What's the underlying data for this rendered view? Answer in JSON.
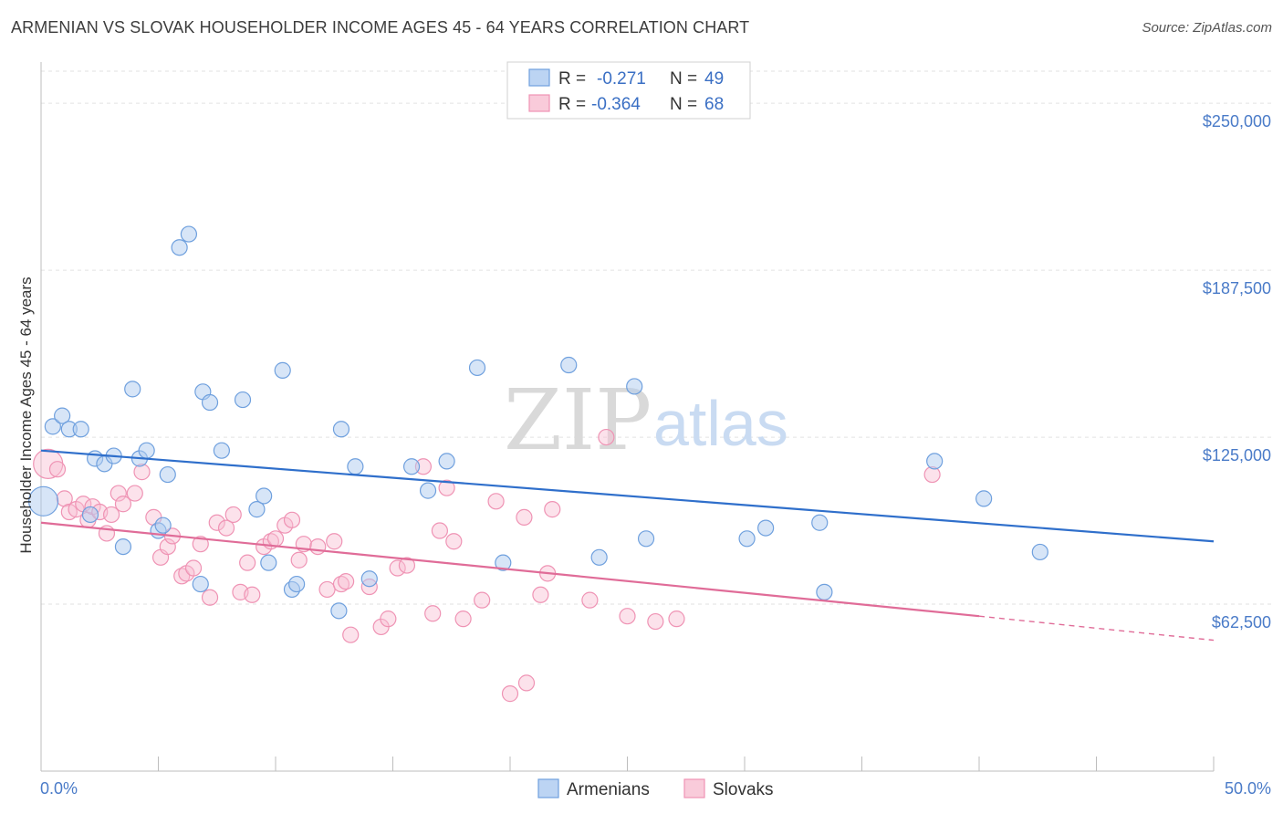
{
  "title": "ARMENIAN VS SLOVAK HOUSEHOLDER INCOME AGES 45 - 64 YEARS CORRELATION CHART",
  "source": "Source: ZipAtlas.com",
  "watermark": {
    "zip": "ZIP",
    "atlas": "atlas"
  },
  "legend": {
    "rows": [
      {
        "r_label": "R =",
        "r_value": "-0.271",
        "n_label": "N =",
        "n_value": "49"
      },
      {
        "r_label": "R =",
        "r_value": "-0.364",
        "n_label": "N =",
        "n_value": "68"
      }
    ]
  },
  "chart_data": {
    "type": "scatter",
    "ylabel": "Householder Income Ages 45 - 64 years",
    "xlim": [
      0,
      50
    ],
    "ylim": [
      0,
      262000
    ],
    "x_tick_labels": [
      "0.0%",
      "50.0%"
    ],
    "y_ticks": [
      62500,
      125000,
      187500,
      250000
    ],
    "y_tick_labels": [
      "$62,500",
      "$125,000",
      "$187,500",
      "$250,000"
    ],
    "grid": true,
    "legend_position": "top-center",
    "colors": {
      "armenians": "#6fa0de",
      "slovaks": "#ef93b4",
      "armenians_line": "#2f6fcb",
      "slovaks_line": "#e06c98"
    },
    "series": [
      {
        "name": "Armenians",
        "r": -0.271,
        "n": 49,
        "trend": {
          "x": [
            0,
            50
          ],
          "y": [
            120000,
            86000
          ]
        },
        "points": [
          [
            0.1,
            101000
          ],
          [
            0.5,
            129000
          ],
          [
            0.9,
            133000
          ],
          [
            1.2,
            128000
          ],
          [
            1.7,
            128000
          ],
          [
            2.1,
            96000
          ],
          [
            2.3,
            117000
          ],
          [
            2.7,
            115000
          ],
          [
            3.1,
            118000
          ],
          [
            3.5,
            84000
          ],
          [
            3.9,
            143000
          ],
          [
            4.2,
            117000
          ],
          [
            4.5,
            120000
          ],
          [
            5.0,
            90000
          ],
          [
            5.2,
            92000
          ],
          [
            5.4,
            111000
          ],
          [
            5.9,
            196000
          ],
          [
            6.3,
            201000
          ],
          [
            6.8,
            70000
          ],
          [
            6.9,
            142000
          ],
          [
            7.2,
            138000
          ],
          [
            7.7,
            120000
          ],
          [
            8.6,
            139000
          ],
          [
            9.2,
            98000
          ],
          [
            9.5,
            103000
          ],
          [
            9.7,
            78000
          ],
          [
            10.3,
            150000
          ],
          [
            10.7,
            68000
          ],
          [
            10.9,
            70000
          ],
          [
            12.7,
            60000
          ],
          [
            12.8,
            128000
          ],
          [
            13.4,
            114000
          ],
          [
            14.0,
            72000
          ],
          [
            15.8,
            114000
          ],
          [
            16.5,
            105000
          ],
          [
            17.3,
            116000
          ],
          [
            18.6,
            151000
          ],
          [
            19.7,
            78000
          ],
          [
            22.5,
            152000
          ],
          [
            23.8,
            80000
          ],
          [
            25.3,
            144000
          ],
          [
            25.8,
            87000
          ],
          [
            30.1,
            87000
          ],
          [
            30.9,
            91000
          ],
          [
            33.2,
            93000
          ],
          [
            33.4,
            67000
          ],
          [
            38.1,
            116000
          ],
          [
            40.2,
            102000
          ],
          [
            42.6,
            82000
          ]
        ]
      },
      {
        "name": "Slovaks",
        "r": -0.364,
        "n": 68,
        "trend": {
          "x": [
            0,
            40
          ],
          "y": [
            93000,
            58000
          ],
          "dashed_to": {
            "x": 50,
            "y": 49000
          }
        },
        "points": [
          [
            0.3,
            115000
          ],
          [
            0.7,
            113000
          ],
          [
            1.0,
            102000
          ],
          [
            1.2,
            97000
          ],
          [
            1.5,
            98000
          ],
          [
            1.8,
            100000
          ],
          [
            2.0,
            94000
          ],
          [
            2.2,
            99000
          ],
          [
            2.5,
            97000
          ],
          [
            2.8,
            89000
          ],
          [
            3.0,
            96000
          ],
          [
            3.3,
            104000
          ],
          [
            3.5,
            100000
          ],
          [
            4.0,
            104000
          ],
          [
            4.3,
            112000
          ],
          [
            4.8,
            95000
          ],
          [
            5.1,
            80000
          ],
          [
            5.4,
            84000
          ],
          [
            5.6,
            88000
          ],
          [
            6.0,
            73000
          ],
          [
            6.2,
            74000
          ],
          [
            6.5,
            76000
          ],
          [
            6.8,
            85000
          ],
          [
            7.2,
            65000
          ],
          [
            7.5,
            93000
          ],
          [
            7.9,
            91000
          ],
          [
            8.2,
            96000
          ],
          [
            8.5,
            67000
          ],
          [
            8.8,
            78000
          ],
          [
            9.0,
            66000
          ],
          [
            9.5,
            84000
          ],
          [
            9.8,
            86000
          ],
          [
            10.0,
            87000
          ],
          [
            10.4,
            92000
          ],
          [
            10.7,
            94000
          ],
          [
            11.0,
            79000
          ],
          [
            11.2,
            85000
          ],
          [
            11.8,
            84000
          ],
          [
            12.2,
            68000
          ],
          [
            12.5,
            86000
          ],
          [
            12.8,
            70000
          ],
          [
            13.0,
            71000
          ],
          [
            13.2,
            51000
          ],
          [
            14.0,
            69000
          ],
          [
            14.5,
            54000
          ],
          [
            14.8,
            57000
          ],
          [
            15.2,
            76000
          ],
          [
            15.6,
            77000
          ],
          [
            16.3,
            114000
          ],
          [
            16.7,
            59000
          ],
          [
            17.0,
            90000
          ],
          [
            17.3,
            106000
          ],
          [
            17.6,
            86000
          ],
          [
            18.0,
            57000
          ],
          [
            18.8,
            64000
          ],
          [
            19.4,
            101000
          ],
          [
            20.0,
            29000
          ],
          [
            20.6,
            95000
          ],
          [
            20.7,
            33000
          ],
          [
            21.3,
            66000
          ],
          [
            21.6,
            74000
          ],
          [
            21.8,
            98000
          ],
          [
            23.4,
            64000
          ],
          [
            24.1,
            125000
          ],
          [
            25.0,
            58000
          ],
          [
            26.2,
            56000
          ],
          [
            27.1,
            57000
          ],
          [
            38.0,
            111000
          ]
        ]
      }
    ]
  },
  "bottom_legend": [
    "Armenians",
    "Slovaks"
  ]
}
